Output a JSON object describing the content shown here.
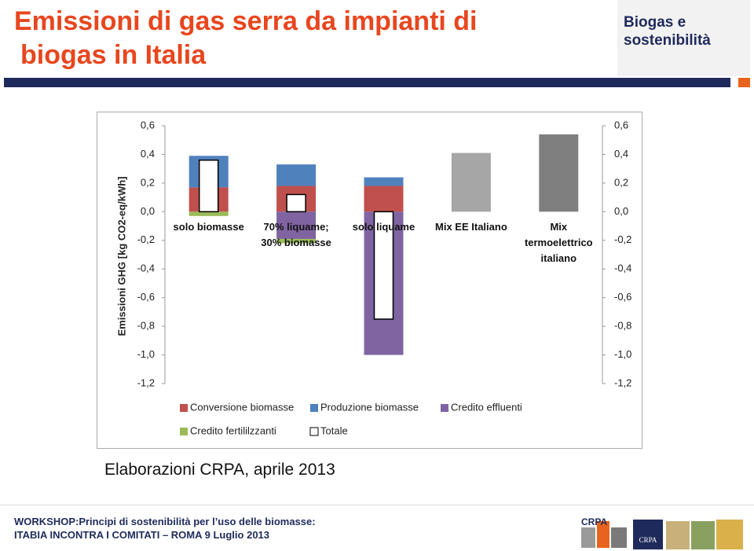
{
  "header": {
    "title": [
      "Emissioni di gas serra da impianti di",
      "biogas in Italia"
    ],
    "section": [
      "Biogas e",
      "sostenibilità"
    ]
  },
  "chart_data": {
    "type": "bar",
    "stacked": true,
    "y_label": "Emissioni GHG [kg CO2-eq/kWh]",
    "categories": [
      "solo biomasse",
      "70% liquame; 30% biomasse",
      "solo liquame",
      "Mix EE Italiano",
      "Mix termoelettrico italiano"
    ],
    "series": [
      {
        "name": "Conversione biomasse",
        "color": "#c0504d",
        "values": [
          0.17,
          0.18,
          0.18,
          null,
          null
        ]
      },
      {
        "name": "Produzione biomasse",
        "color": "#4f81bd",
        "values": [
          0.22,
          0.15,
          0.06,
          null,
          null
        ]
      },
      {
        "name": "Credito effluenti",
        "color": "#8064a2",
        "values": [
          null,
          -0.19,
          -1.0,
          null,
          null
        ]
      },
      {
        "name": "Credito fertililzzanti",
        "color": "#9bbb59",
        "values": [
          -0.03,
          -0.03,
          null,
          null,
          null
        ]
      },
      {
        "color": "#a6a6a6",
        "values": [
          null,
          null,
          null,
          0.41,
          null
        ]
      },
      {
        "color": "#7f7f7f",
        "values": [
          null,
          null,
          null,
          null,
          0.54
        ]
      },
      {
        "name": "Totale",
        "color": "#ffffff",
        "overlay": true,
        "values": [
          0.36,
          0.12,
          -0.75,
          null,
          null
        ]
      }
    ],
    "ylim": [
      -1.2,
      0.6
    ],
    "yticks": [
      {
        "value": -1.2,
        "label": "-1,2"
      },
      {
        "value": -1.0,
        "label": "-1,0"
      },
      {
        "value": -0.8,
        "label": "-0,8"
      },
      {
        "value": -0.6,
        "label": "-0,6"
      },
      {
        "value": -0.4,
        "label": "-0,4"
      },
      {
        "value": -0.2,
        "label": "-0,2"
      },
      {
        "value": 0,
        "label": "0,0"
      },
      {
        "value": 0.2,
        "label": "0,2"
      },
      {
        "value": 0.4,
        "label": "0,4"
      },
      {
        "value": 0.6,
        "label": "0,6"
      }
    ],
    "y2lim": [
      -1.2,
      0.6
    ],
    "y2ticks": [
      {
        "value": -1.2,
        "label": "-1,2"
      },
      {
        "value": -1.0,
        "label": "-1,0"
      },
      {
        "value": -0.8,
        "label": "-0,8"
      },
      {
        "value": -0.6,
        "label": "-0,6"
      },
      {
        "value": -0.4,
        "label": "-0,4"
      },
      {
        "value": -0.2,
        "label": "-0,2"
      },
      {
        "value": 0,
        "label": "0,0"
      },
      {
        "value": 0.2,
        "label": "0,2"
      },
      {
        "value": 0.4,
        "label": "0,4"
      },
      {
        "value": 0.6,
        "label": "0,6"
      }
    ],
    "grid": false
  },
  "caption": "Elaborazioni CRPA, aprile 2013",
  "footer": {
    "lines": [
      "WORKSHOP:Principi di sostenibilità per l’uso delle biomasse:",
      "ITABIA INCONTRA I COMITATI – ROMA 9 Luglio 2013"
    ],
    "logos": [
      "CRPA",
      "CRPA"
    ]
  }
}
